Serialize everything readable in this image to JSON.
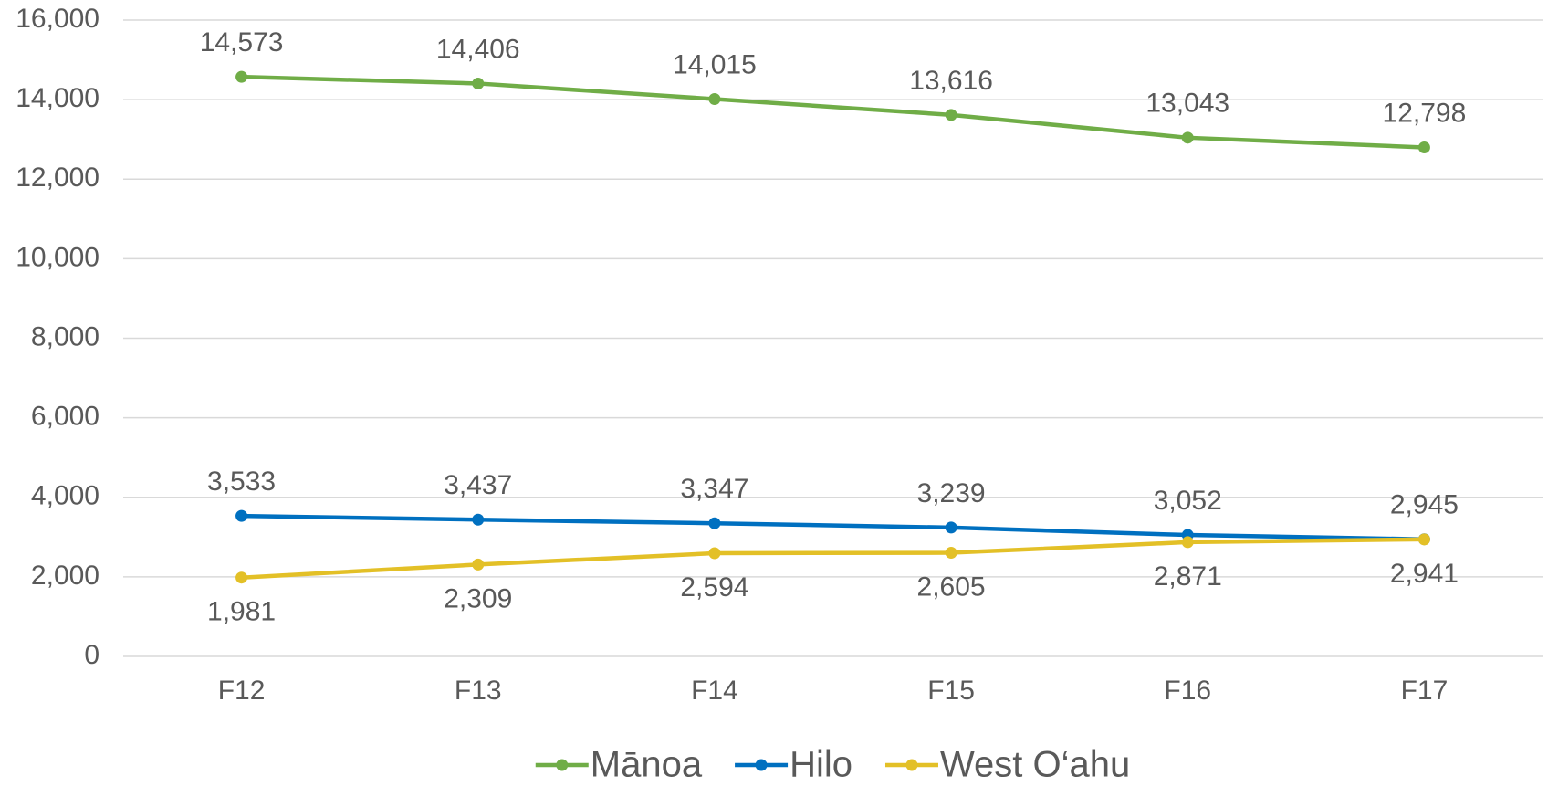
{
  "chart_data": {
    "type": "line",
    "categories": [
      "F12",
      "F13",
      "F14",
      "F15",
      "F16",
      "F17"
    ],
    "series": [
      {
        "name": "Mānoa",
        "color": "#70ad47",
        "label_position": "above",
        "values": [
          14573,
          14406,
          14015,
          13616,
          13043,
          12798
        ],
        "value_labels": [
          "14,573",
          "14,406",
          "14,015",
          "13,616",
          "13,043",
          "12,798"
        ]
      },
      {
        "name": "Hilo",
        "color": "#0070c0",
        "label_position": "above",
        "values": [
          3533,
          3437,
          3347,
          3239,
          3052,
          2945
        ],
        "value_labels": [
          "3,533",
          "3,437",
          "3,347",
          "3,239",
          "3,052",
          "2,945"
        ]
      },
      {
        "name": "West O‘ahu",
        "color": "#e3c027",
        "label_position": "below",
        "values": [
          1981,
          2309,
          2594,
          2605,
          2871,
          2941
        ],
        "value_labels": [
          "1,981",
          "2,309",
          "2,594",
          "2,605",
          "2,871",
          "2,941"
        ]
      }
    ],
    "ylim": [
      0,
      16000
    ],
    "yticks": [
      0,
      {
        "value": 2000,
        "label": "2,000"
      },
      {
        "value": 4000,
        "label": "4,000"
      },
      {
        "value": 6000,
        "label": "6,000"
      },
      {
        "value": 8000,
        "label": "8,000"
      },
      {
        "value": 10000,
        "label": "10,000"
      },
      {
        "value": 12000,
        "label": "12,000"
      },
      {
        "value": 14000,
        "label": "14,000"
      },
      {
        "value": 16000,
        "label": "16,000"
      }
    ],
    "grid": true,
    "legend": "bottom"
  }
}
